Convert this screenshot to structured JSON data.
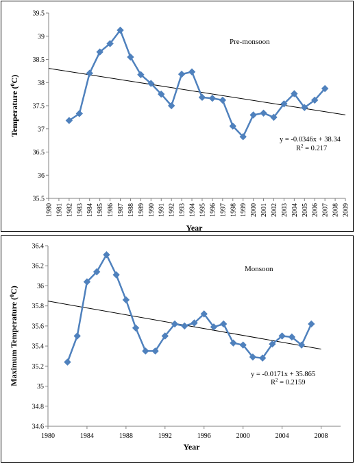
{
  "chart_data": [
    {
      "type": "line",
      "title": "",
      "annotation": "Pre-monsoon",
      "xlabel": "Year",
      "ylabel": "Temperature (",
      "ylabel_sup": "0",
      "ylabel_end": "C)",
      "x_axis": {
        "type": "category",
        "tick_rotation": "vertical",
        "tick_labels": [
          "1980",
          "1981",
          "1982",
          "1983",
          "1984",
          "1985",
          "1986",
          "1987",
          "1988",
          "1989",
          "1990",
          "1991",
          "1992",
          "1993",
          "1994",
          "1995",
          "1996",
          "1997",
          "1998",
          "1999",
          "2000",
          "2001",
          "2002",
          "2003",
          "2004",
          "2005",
          "2006",
          "2007",
          "2008",
          "2009"
        ]
      },
      "y_axis": {
        "min": 35.5,
        "max": 39.5,
        "step": 0.5,
        "tick_labels": [
          "35.5",
          "36",
          "36.5",
          "37",
          "37.5",
          "38",
          "38.5",
          "39",
          "39.5"
        ]
      },
      "grid": false,
      "series": [
        {
          "name": "",
          "color": "#4F81BD",
          "marker": "diamond",
          "x": [
            1982,
            1983,
            1984,
            1985,
            1986,
            1987,
            1988,
            1989,
            1990,
            1991,
            1992,
            1993,
            1994,
            1995,
            1996,
            1997,
            1998,
            1999,
            2000,
            2001,
            2002,
            2003,
            2004,
            2005,
            2006,
            2007
          ],
          "y": [
            37.18,
            37.33,
            38.2,
            38.66,
            38.84,
            39.13,
            38.55,
            38.17,
            37.98,
            37.75,
            37.5,
            38.18,
            38.23,
            37.68,
            37.66,
            37.62,
            37.06,
            36.83,
            37.3,
            37.34,
            37.25,
            37.54,
            37.76,
            37.46,
            37.62,
            37.87
          ]
        }
      ],
      "trendline": {
        "slope": -0.0346,
        "intercept": 38.34,
        "x_start": 1980,
        "x_end": 2009,
        "color": "#000000"
      },
      "equation": "y = -0.0346x + 38.34",
      "r2_prefix": "R",
      "r2_sup": "2",
      "r2_value": " = 0.217"
    },
    {
      "type": "line",
      "title": "",
      "annotation": "Monsoon",
      "xlabel": "Year",
      "ylabel": "Maximum Temperature (",
      "ylabel_sup": "0",
      "ylabel_end": "C)",
      "x_axis": {
        "type": "numeric",
        "min": 1980,
        "max": 2010,
        "tick_labels": [
          "1980",
          "1984",
          "1988",
          "1992",
          "1996",
          "2000",
          "2004",
          "2008"
        ]
      },
      "y_axis": {
        "min": 34.6,
        "max": 36.4,
        "step": 0.2,
        "tick_labels": [
          "34.6",
          "34.8",
          "35",
          "35.2",
          "35.4",
          "35.6",
          "35.8",
          "36",
          "36.2",
          "36.4"
        ]
      },
      "grid": false,
      "series": [
        {
          "name": "",
          "color": "#4F81BD",
          "marker": "diamond",
          "x": [
            1982,
            1983,
            1984,
            1985,
            1986,
            1987,
            1988,
            1989,
            1990,
            1991,
            1992,
            1993,
            1994,
            1995,
            1996,
            1997,
            1998,
            1999,
            2000,
            2001,
            2002,
            2003,
            2004,
            2005,
            2006,
            2007
          ],
          "y": [
            35.24,
            35.5,
            36.04,
            36.14,
            36.31,
            36.11,
            35.86,
            35.58,
            35.35,
            35.35,
            35.5,
            35.62,
            35.6,
            35.63,
            35.72,
            35.59,
            35.62,
            35.43,
            35.41,
            35.29,
            35.28,
            35.42,
            35.5,
            35.49,
            35.41,
            35.62
          ]
        }
      ],
      "trendline": {
        "slope": -0.0171,
        "intercept": 35.865,
        "x_start": 1980,
        "x_end": 2008,
        "color": "#000000"
      },
      "equation": "y = -0.0171x + 35.865",
      "r2_prefix": "R",
      "r2_sup": "2",
      "r2_value": " = 0.2159"
    }
  ]
}
